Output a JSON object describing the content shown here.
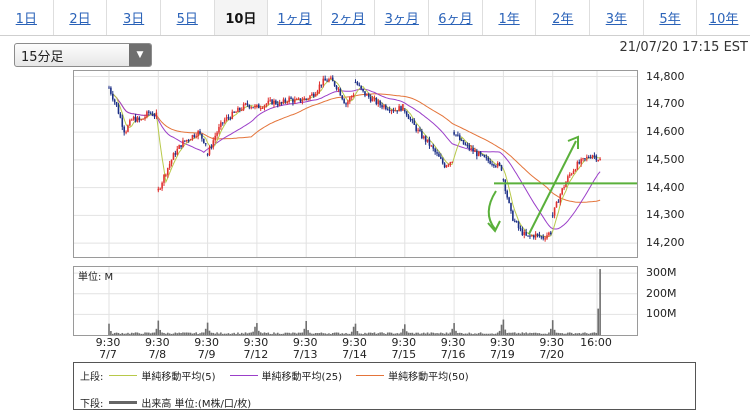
{
  "tabs": [
    {
      "label": "1日",
      "active": false
    },
    {
      "label": "2日",
      "active": false
    },
    {
      "label": "3日",
      "active": false
    },
    {
      "label": "5日",
      "active": false
    },
    {
      "label": "10日",
      "active": true
    },
    {
      "label": "1ヶ月",
      "active": false
    },
    {
      "label": "2ヶ月",
      "active": false
    },
    {
      "label": "3ヶ月",
      "active": false
    },
    {
      "label": "6ヶ月",
      "active": false
    },
    {
      "label": "1年",
      "active": false
    },
    {
      "label": "2年",
      "active": false
    },
    {
      "label": "3年",
      "active": false
    },
    {
      "label": "5年",
      "active": false
    },
    {
      "label": "10年",
      "active": false
    }
  ],
  "interval_select": {
    "value": "15分足",
    "icon": "triangle-down-icon"
  },
  "timestamp": "21/07/20 17:15 EST",
  "colors": {
    "up_candle": "#e0312f",
    "down_candle": "#1c2f86",
    "ma5": "#b8c94a",
    "ma25": "#9b3fc9",
    "ma50": "#e4743a",
    "volume": "#6f6f6f",
    "annotation": "#5ab03b"
  },
  "chart_data": [
    {
      "type": "candlestick",
      "title": "",
      "ylim": [
        14150,
        14820
      ],
      "yticks": [
        "14,800",
        "14,700",
        "14,600",
        "14,500",
        "14,400",
        "14,300",
        "14,200"
      ],
      "ytick_values": [
        14800,
        14700,
        14600,
        14500,
        14400,
        14300,
        14200
      ],
      "x_ticks": [
        {
          "time": "9:30",
          "date": "7/7"
        },
        {
          "time": "9:30",
          "date": "7/8"
        },
        {
          "time": "9:30",
          "date": "7/9"
        },
        {
          "time": "9:30",
          "date": "7/12"
        },
        {
          "time": "9:30",
          "date": "7/13"
        },
        {
          "time": "9:30",
          "date": "7/14"
        },
        {
          "time": "9:30",
          "date": "7/15"
        },
        {
          "time": "9:30",
          "date": "7/16"
        },
        {
          "time": "9:30",
          "date": "7/19"
        },
        {
          "time": "9:30",
          "date": "7/20"
        },
        {
          "time": "16:00",
          "date": ""
        }
      ],
      "series": [
        {
          "date": "7/7",
          "values": [
            14760,
            14690,
            14600,
            14650,
            14640,
            14670,
            14660
          ]
        },
        {
          "date": "7/8",
          "values": [
            14390,
            14460,
            14520,
            14560,
            14580,
            14600,
            14560
          ]
        },
        {
          "date": "7/9",
          "values": [
            14520,
            14590,
            14640,
            14660,
            14680,
            14700,
            14690
          ]
        },
        {
          "date": "7/12",
          "values": [
            14690,
            14700,
            14710,
            14700,
            14720,
            14710,
            14720
          ]
        },
        {
          "date": "7/13",
          "values": [
            14720,
            14740,
            14780,
            14790,
            14760,
            14700,
            14740
          ]
        },
        {
          "date": "7/14",
          "values": [
            14780,
            14740,
            14720,
            14700,
            14690,
            14680,
            14690
          ]
        },
        {
          "date": "7/15",
          "values": [
            14680,
            14630,
            14590,
            14560,
            14520,
            14480,
            14500
          ]
        },
        {
          "date": "7/16",
          "values": [
            14600,
            14560,
            14540,
            14520,
            14500,
            14490,
            14470
          ]
        },
        {
          "date": "7/19",
          "values": [
            14430,
            14300,
            14250,
            14220,
            14230,
            14220,
            14240
          ]
        },
        {
          "date": "7/20",
          "values": [
            14300,
            14380,
            14440,
            14480,
            14500,
            14520,
            14500
          ]
        }
      ],
      "ma_lines": [
        {
          "name": "単純移動平均(5)",
          "period": 5
        },
        {
          "name": "単純移動平均(25)",
          "period": 25
        },
        {
          "name": "単純移動平均(50)",
          "period": 50
        }
      ],
      "horizontal_line": 14415
    },
    {
      "type": "bar",
      "title": "",
      "unit_label": "単位: M",
      "ylim": [
        0,
        330
      ],
      "yticks": [
        "300M",
        "200M",
        "100M"
      ],
      "ytick_values": [
        300,
        200,
        100
      ],
      "opening_volume": [
        55,
        70,
        60,
        58,
        68,
        55,
        52,
        58,
        75,
        72
      ],
      "closing_volume": [
        30,
        30,
        40,
        30,
        40,
        30,
        30,
        50,
        30,
        320
      ]
    }
  ],
  "legend": {
    "upper_label": "上段:",
    "lower_label": "下段:",
    "ma5": "単純移動平均(5)",
    "ma25": "単純移動平均(25)",
    "ma50": "単純移動平均(50)",
    "volume": "出来高 単位:(M株/口/枚)"
  }
}
